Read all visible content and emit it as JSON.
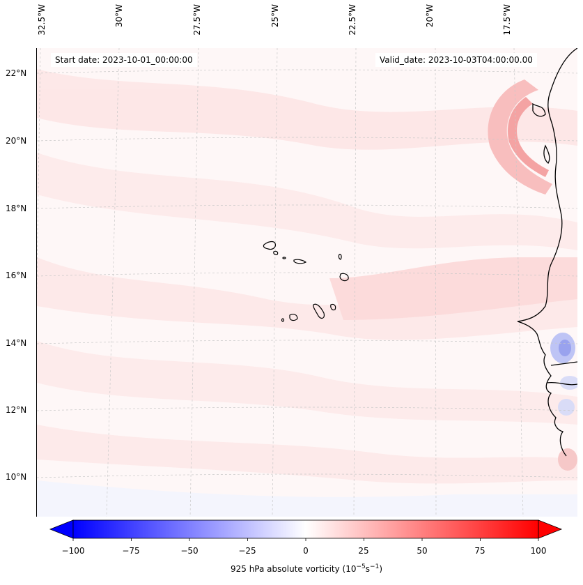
{
  "header": {
    "start_date": "Start date: 2023-10-01_00:00:00",
    "valid_date": "Valid_date: 2023-10-03T04:00:00.00"
  },
  "lon_labels": [
    "32.5°W",
    "30°W",
    "27.5°W",
    "25°W",
    "22.5°W",
    "20°W",
    "17.5°W"
  ],
  "lat_labels": [
    "22°N",
    "20°N",
    "18°N",
    "16°N",
    "14°N",
    "12°N",
    "10°N"
  ],
  "colorbar": {
    "ticks": [
      "−100",
      "−75",
      "−50",
      "−25",
      "0",
      "25",
      "50",
      "75",
      "100"
    ],
    "label": "925 hPa absolute vorticity (10",
    "label_exp1": "−5",
    "label_mid": "s",
    "label_exp2": "−1",
    "label_end": ")",
    "colormap": "bwr",
    "min_color": "#0000ff",
    "mid_color": "#ffffff",
    "max_color": "#ff0000"
  }
}
